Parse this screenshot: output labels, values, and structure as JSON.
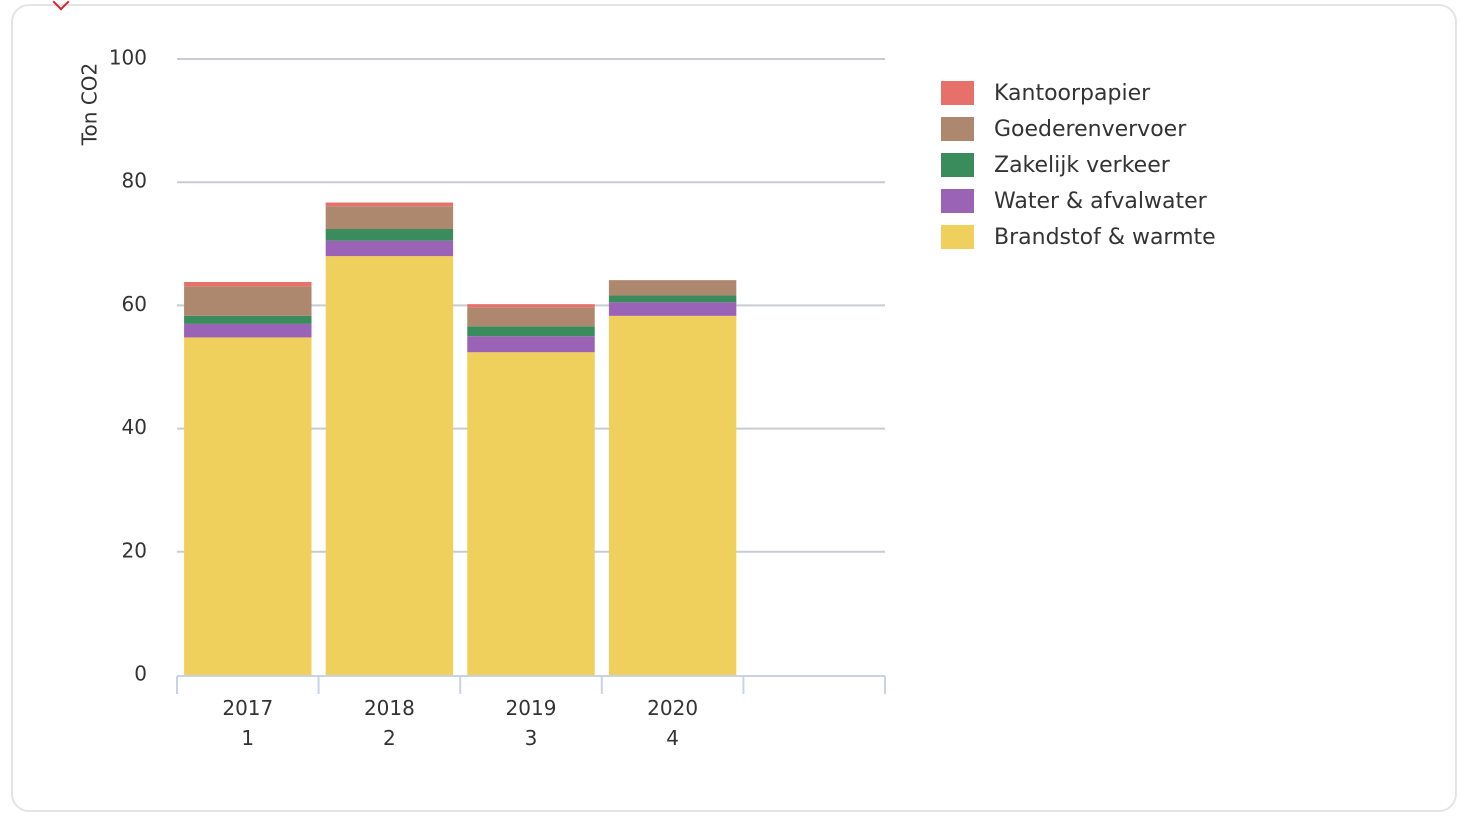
{
  "chart_data": {
    "type": "bar",
    "stacked": true,
    "ylabel": "Ton CO2",
    "ylim": [
      0,
      100
    ],
    "yticks": [
      0,
      20,
      40,
      60,
      80,
      100
    ],
    "grid": true,
    "legend_position": "right",
    "categories": [
      {
        "line1": "2017",
        "line2": "1"
      },
      {
        "line1": "2018",
        "line2": "2"
      },
      {
        "line1": "2019",
        "line2": "3"
      },
      {
        "line1": "2020",
        "line2": "4"
      },
      {
        "line1": "",
        "line2": ""
      }
    ],
    "series": [
      {
        "name": "Brandstof & warmte",
        "color": "#f0d05c",
        "values": [
          54.8,
          68.0,
          52.4,
          58.3,
          null
        ]
      },
      {
        "name": "Water & afvalwater",
        "color": "#9b63b5",
        "values": [
          2.2,
          2.5,
          2.6,
          2.2,
          null
        ]
      },
      {
        "name": "Zakelijk verkeer",
        "color": "#3a8c5c",
        "values": [
          1.3,
          1.9,
          1.6,
          1.1,
          null
        ]
      },
      {
        "name": "Goederenvervoer",
        "color": "#ad876e",
        "values": [
          4.8,
          3.7,
          3.1,
          2.5,
          null
        ]
      },
      {
        "name": "Kantoorpapier",
        "color": "#e8706b",
        "values": [
          0.7,
          0.6,
          0.5,
          0.0,
          null
        ]
      }
    ],
    "legend_order": [
      "Kantoorpapier",
      "Goederenvervoer",
      "Zakelijk verkeer",
      "Water & afvalwater",
      "Brandstof & warmte"
    ]
  }
}
